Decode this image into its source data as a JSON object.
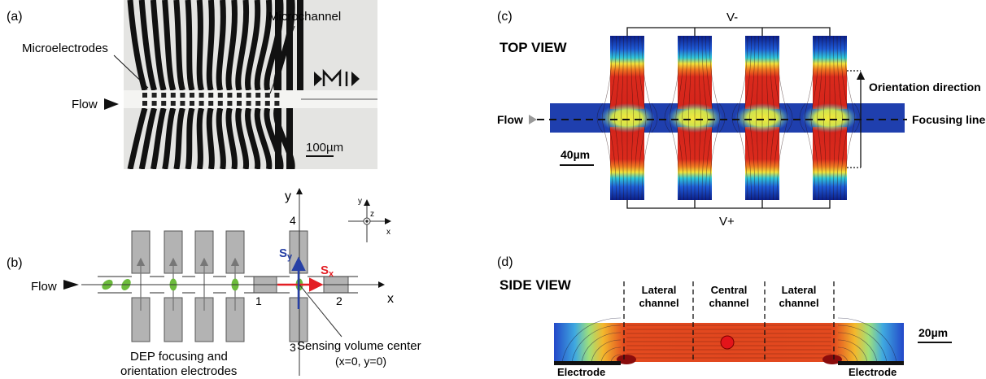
{
  "panels": {
    "a": {
      "tag": "(a)",
      "label_microelectrodes": "Microelectrodes",
      "label_microchannel": "Microchannel",
      "label_flow": "Flow",
      "scale_bar": "100µm"
    },
    "b": {
      "tag": "(b)",
      "label_flow": "Flow",
      "axis_x": "x",
      "axis_y": "y",
      "electrode_1": "1",
      "electrode_2": "2",
      "electrode_3": "3",
      "electrode_4": "4",
      "sx_letter": "S",
      "sx_sub": "x",
      "sy_letter": "S",
      "sy_sub": "y",
      "inset_x": "x",
      "inset_y": "y",
      "inset_z": "z",
      "caption_line1": "DEP focusing and",
      "caption_line2": "orientation electrodes",
      "sensing_line1": "Sensing volume center",
      "sensing_line2": "(x=0, y=0)"
    },
    "c": {
      "tag": "(c)",
      "title": "TOP VIEW",
      "v_minus": "V-",
      "v_plus": "V+",
      "label_flow": "Flow",
      "orientation": "Orientation direction",
      "focusing": "Focusing line",
      "scale_bar": "40µm"
    },
    "d": {
      "tag": "(d)",
      "title": "SIDE VIEW",
      "lateral_left_1": "Lateral",
      "lateral_left_2": "channel",
      "central_1": "Central",
      "central_2": "channel",
      "lateral_right_1": "Lateral",
      "lateral_right_2": "channel",
      "electrode_left": "Electrode",
      "electrode_right": "Electrode",
      "scale_bar": "20µm"
    }
  },
  "colors": {
    "field_low": "#1b3fb5",
    "field_mid": "#f5e027",
    "field_high": "#d9261c",
    "sx_arrow": "#e31e24",
    "sy_arrow": "#2740a5",
    "particle": "#6cbb3c",
    "electrode_gray": "#b3b3b3"
  }
}
